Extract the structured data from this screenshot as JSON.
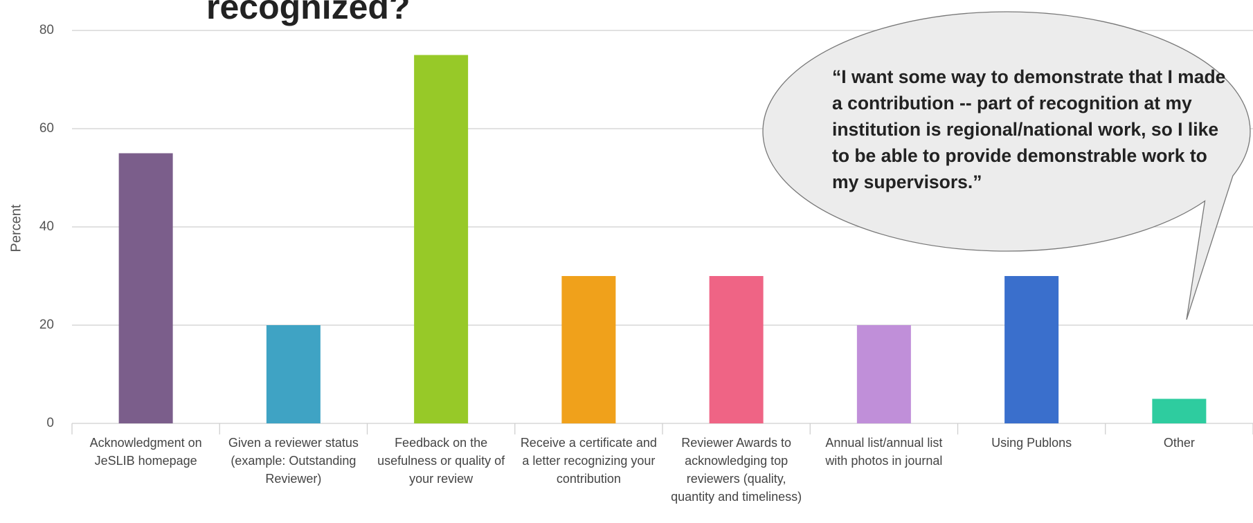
{
  "chart_data": {
    "type": "bar",
    "title": "recognized?",
    "y_label": "Percent",
    "categories": [
      "Acknowledgment on JeSLIB homepage",
      "Given a reviewer status (example: Outstanding Reviewer)",
      "Feedback on the usefulness or quality of your review",
      "Receive a certificate and a letter recognizing your contribution",
      "Reviewer Awards to acknowledging top reviewers (quality, quantity and timeliness)",
      "Annual list/annual list with photos in journal",
      "Using Publons",
      "Other"
    ],
    "values": [
      55,
      20,
      75,
      30,
      30,
      20,
      30,
      5
    ],
    "colors": [
      "#7b5e8b",
      "#3fa3c4",
      "#97c928",
      "#f0a11b",
      "#ef6485",
      "#c08fd9",
      "#3a6fcc",
      "#2ecc9f"
    ],
    "ylim": [
      0,
      80
    ],
    "yticks": [
      0,
      20,
      40,
      60,
      80
    ],
    "grid": true,
    "annotation": "“I want some way to demonstrate that I made a contribution -- part of recognition at my institution is regional/national work, so I like to be able to provide demonstrable work to my supervisors.”"
  }
}
